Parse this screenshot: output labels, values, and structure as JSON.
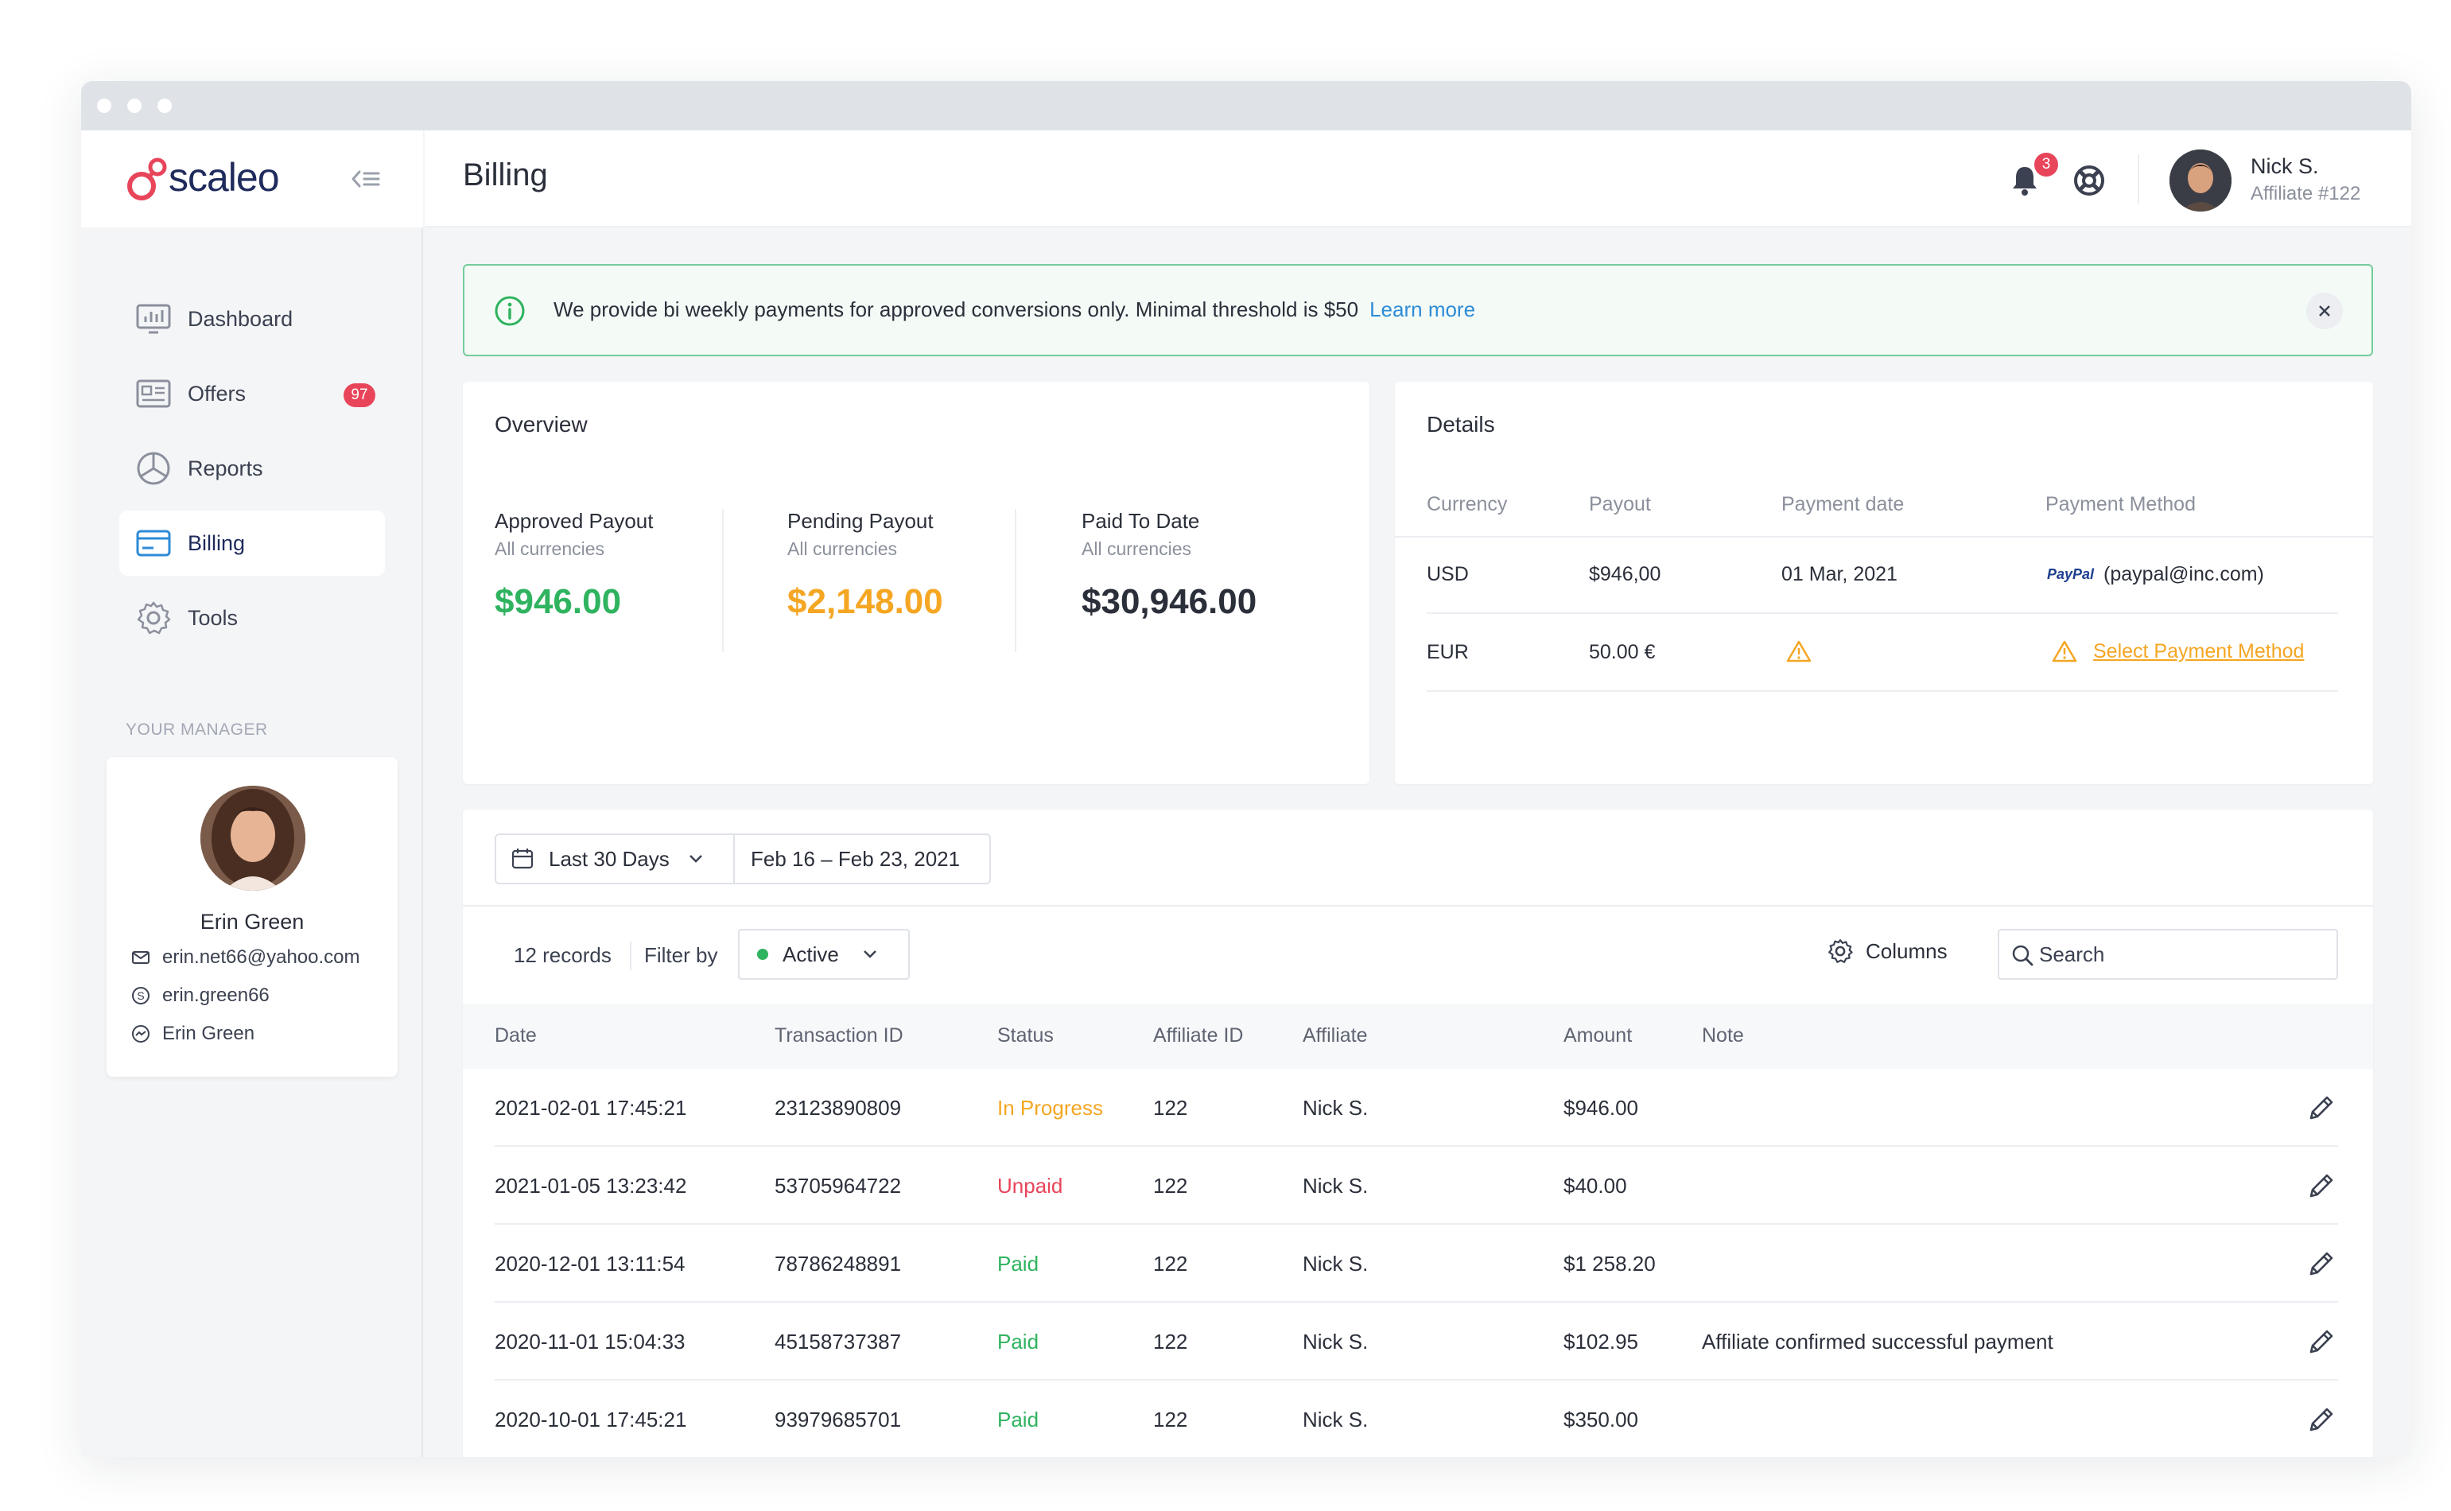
{
  "app": {
    "brand": "scaleo",
    "page_title": "Billing"
  },
  "colors": {
    "brand": "#1f2b5c",
    "accent_red": "#e8455a",
    "success": "#2fb35f",
    "warning": "#f5a623",
    "link": "#2e8bd7"
  },
  "sidebar": {
    "items": [
      {
        "label": "Dashboard",
        "icon": "dashboard-icon",
        "active": false
      },
      {
        "label": "Offers",
        "icon": "offers-icon",
        "badge": "97",
        "active": false
      },
      {
        "label": "Reports",
        "icon": "reports-icon",
        "active": false
      },
      {
        "label": "Billing",
        "icon": "billing-icon",
        "active": true
      },
      {
        "label": "Tools",
        "icon": "gear-icon",
        "active": false
      }
    ],
    "manager": {
      "title": "YOUR MANAGER",
      "name": "Erin Green",
      "email": "erin.net66@yahoo.com",
      "skype": "erin.green66",
      "messenger": "Erin Green"
    }
  },
  "header": {
    "notifications_count": "3",
    "user_name": "Nick S.",
    "user_role": "Affiliate #122"
  },
  "alert": {
    "message": "We provide bi weekly payments for approved conversions only. Minimal threshold is $50",
    "link": "Learn more"
  },
  "overview": {
    "title": "Overview",
    "approved": {
      "label": "Approved Payout",
      "sub": "All currencies",
      "value": "$946.00"
    },
    "pending": {
      "label": "Pending Payout",
      "sub": "All currencies",
      "value": "$2,148.00"
    },
    "paid": {
      "label": "Paid To Date",
      "sub": "All currencies",
      "value": "$30,946.00"
    }
  },
  "details": {
    "title": "Details",
    "columns": [
      "Currency",
      "Payout",
      "Payment date",
      "Payment Method"
    ],
    "rows": [
      {
        "currency": "USD",
        "payout": "$946,00",
        "date": "01 Mar, 2021",
        "method_logo": "PayPal",
        "method": "(paypal@inc.com)"
      },
      {
        "currency": "EUR",
        "payout": "50.00 €",
        "date": "",
        "method": "Select Payment Method"
      }
    ]
  },
  "transactions": {
    "range_label": "Last 30 Days",
    "date_range": "Feb 16 – Feb 23, 2021",
    "records": "12 records",
    "filter_label": "Filter by",
    "filter_value": "Active",
    "columns_label": "Columns",
    "search_placeholder": "Search",
    "headers": [
      "Date",
      "Transaction ID",
      "Status",
      "Affiliate ID",
      "Affiliate",
      "Amount",
      "Note"
    ],
    "rows": [
      {
        "date": "2021-02-01  17:45:21",
        "id": "23123890809",
        "status": "In Progress",
        "status_color": "#f5a623",
        "aff_id": "122",
        "affiliate": "Nick S.",
        "amount": "$946.00",
        "note": ""
      },
      {
        "date": "2021-01-05 13:23:42",
        "id": "53705964722",
        "status": "Unpaid",
        "status_color": "#e8455a",
        "aff_id": "122",
        "affiliate": "Nick S.",
        "amount": "$40.00",
        "note": ""
      },
      {
        "date": "2020-12-01 13:11:54",
        "id": "78786248891",
        "status": "Paid",
        "status_color": "#2fb35f",
        "aff_id": "122",
        "affiliate": "Nick S.",
        "amount": "$1 258.20",
        "note": ""
      },
      {
        "date": "2020-11-01 15:04:33",
        "id": "45158737387",
        "status": "Paid",
        "status_color": "#2fb35f",
        "aff_id": "122",
        "affiliate": "Nick S.",
        "amount": "$102.95",
        "note": "Affiliate confirmed successful payment"
      },
      {
        "date": "2020-10-01 17:45:21",
        "id": "93979685701",
        "status": "Paid",
        "status_color": "#2fb35f",
        "aff_id": "122",
        "affiliate": "Nick S.",
        "amount": "$350.00",
        "note": ""
      }
    ]
  }
}
